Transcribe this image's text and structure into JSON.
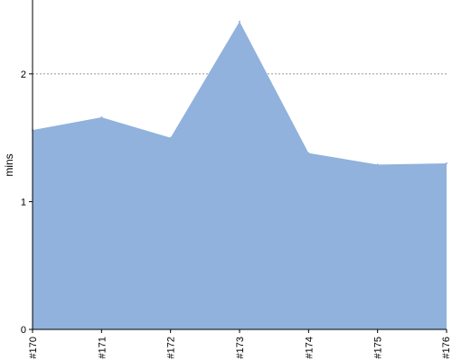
{
  "chart_data": {
    "type": "area",
    "x": [
      "#170",
      "#171",
      "#172",
      "#173",
      "#174",
      "#175",
      "#176"
    ],
    "values": [
      1.56,
      1.66,
      1.5,
      2.41,
      1.38,
      1.29,
      1.3
    ],
    "ylabel": "mins",
    "xlabel": "",
    "ylim": [
      0,
      2.55
    ],
    "yticks": [
      0,
      1,
      2
    ],
    "gridlines": [
      1,
      2
    ],
    "grid": "dotted horizontal",
    "fill_color": "#90b2dc",
    "axis_color": "#000000",
    "grid_color": "#777777"
  }
}
